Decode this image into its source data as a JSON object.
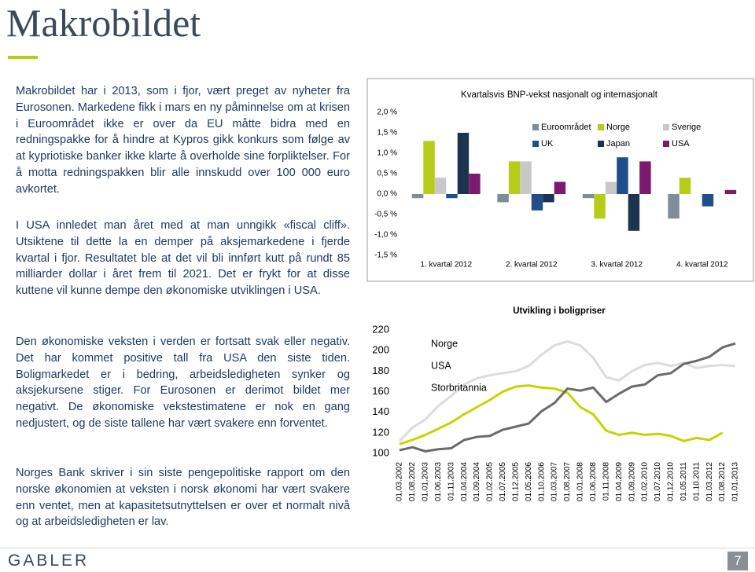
{
  "header": {
    "title": "Makrobildet"
  },
  "body": {
    "paragraphs": [
      "Makrobildet har i 2013, som i fjor, vært preget av nyheter fra Eurosonen. Markedene fikk i mars en ny påminnelse om at krisen i Euroområdet ikke er over da EU måtte bidra med en redningspakke for å hindre at Kypros gikk konkurs som følge av at kypriotiske banker ikke klarte å overholde sine forpliktelser. For å motta redningspakken blir alle innskudd over 100 000 euro avkortet.",
      "I USA innledet man året med at man unngikk «fiscal cliff». Utsiktene til dette la en demper på aksjemarkedene i fjerde kvartal i fjor. Resultatet ble at det vil bli innført kutt på rundt 85 milliarder dollar i året frem til 2021. Det er frykt for at disse kuttene vil kunne dempe den økonomiske utviklingen i USA.",
      "Den økonomiske veksten i verden er fortsatt svak eller negativ. Det har kommet positive tall fra USA den siste tiden. Boligmarkedet er i bedring, arbeidsledigheten synker og aksjekursene stiger. For Eurosonen er derimot bildet mer negativt. De økonomiske vekstestimatene er nok en gang nedjustert, og de siste tallene har vært svakere enn forventet.",
      "Norges Bank skriver i sin siste pengepolitiske rapport om den norske økonomien at veksten i norsk økonomi har vært svakere enn ventet, men at kapasitetsutnyttelsen er over et normalt nivå og at arbeidsledigheten er lav."
    ]
  },
  "chart_data": [
    {
      "type": "bar",
      "title": "Kvartalsvis BNP-vekst nasjonalt og internasjonalt",
      "categories": [
        "1. kvartal 2012",
        "2. kvartal 2012",
        "3. kvartal 2012",
        "4. kvartal 2012"
      ],
      "series": [
        {
          "name": "Euroområdet",
          "color": "#7f8c99",
          "values": [
            -0.1,
            -0.2,
            -0.1,
            -0.6
          ]
        },
        {
          "name": "Norge",
          "color": "#b5cc18",
          "values": [
            1.3,
            0.8,
            -0.6,
            0.4
          ]
        },
        {
          "name": "Sverige",
          "color": "#c8c8c8",
          "values": [
            0.4,
            0.8,
            0.3,
            0
          ]
        },
        {
          "name": "UK",
          "color": "#1f4e8c",
          "values": [
            -0.1,
            -0.4,
            0.9,
            -0.3
          ]
        },
        {
          "name": "Japan",
          "color": "#1c3450",
          "values": [
            1.5,
            -0.2,
            -0.9,
            0
          ]
        },
        {
          "name": "USA",
          "color": "#7b1a6e",
          "values": [
            0.5,
            0.3,
            0.8,
            0.1
          ]
        }
      ],
      "ylim": [
        -1.5,
        2.0
      ],
      "yticks": [
        {
          "value": -1.5,
          "label": "-1,5 %"
        },
        {
          "value": -1.0,
          "label": "-1,0 %"
        },
        {
          "value": -0.5,
          "label": "-0,5 %"
        },
        {
          "value": 0,
          "label": "0,0 %"
        },
        {
          "value": 0.5,
          "label": "0,5 %"
        },
        {
          "value": 1.0,
          "label": "1,0 %"
        },
        {
          "value": 1.5,
          "label": "1,5 %"
        },
        {
          "value": 2.0,
          "label": "2,0 %"
        }
      ],
      "grid": false
    },
    {
      "type": "line",
      "title": "Utvikling i boligpriser",
      "categories": [
        "01.03.2002",
        "01.08.2002",
        "01.01.2003",
        "01.06.2003",
        "01.11.2003",
        "01.04.2004",
        "01.09.2004",
        "01.02.2005",
        "01.07.2005",
        "01.12.2005",
        "01.05.2006",
        "01.10.2006",
        "01.03.2007",
        "01.08.2007",
        "01.01.2008",
        "01.06.2008",
        "01.11.2008",
        "01.04.2009",
        "01.09.2009",
        "01.02.2010",
        "01.07.2010",
        "01.12.2010",
        "01.05.2011",
        "01.10.2011",
        "01.03.2012",
        "01.08.2012",
        "01.01.2013"
      ],
      "series": [
        {
          "name": "Norge",
          "color": "#6a6a6a",
          "values": [
            103,
            106,
            102,
            104,
            105,
            113,
            116,
            117,
            123,
            126,
            129,
            141,
            149,
            163,
            161,
            164,
            150,
            158,
            165,
            167,
            176,
            178,
            187,
            190,
            194,
            203,
            207
          ]
        },
        {
          "name": "USA",
          "color": "#c8d400",
          "values": [
            109,
            113,
            118,
            124,
            130,
            138,
            145,
            152,
            160,
            165,
            166,
            164,
            163,
            159,
            145,
            138,
            122,
            118,
            120,
            118,
            119,
            117,
            112,
            115,
            113,
            120,
            null
          ]
        },
        {
          "name": "Storbritannia",
          "color": "#dcdcdc",
          "values": [
            112,
            125,
            133,
            146,
            156,
            167,
            173,
            176,
            178,
            180,
            185,
            196,
            205,
            209,
            205,
            193,
            174,
            171,
            180,
            186,
            188,
            185,
            188,
            183,
            185,
            186,
            185
          ]
        }
      ],
      "ylim": [
        100,
        220
      ],
      "yticks": [
        100,
        120,
        140,
        160,
        180,
        200,
        220
      ],
      "grid": false
    }
  ],
  "footer": {
    "logo": "GABLER",
    "page": "7"
  }
}
